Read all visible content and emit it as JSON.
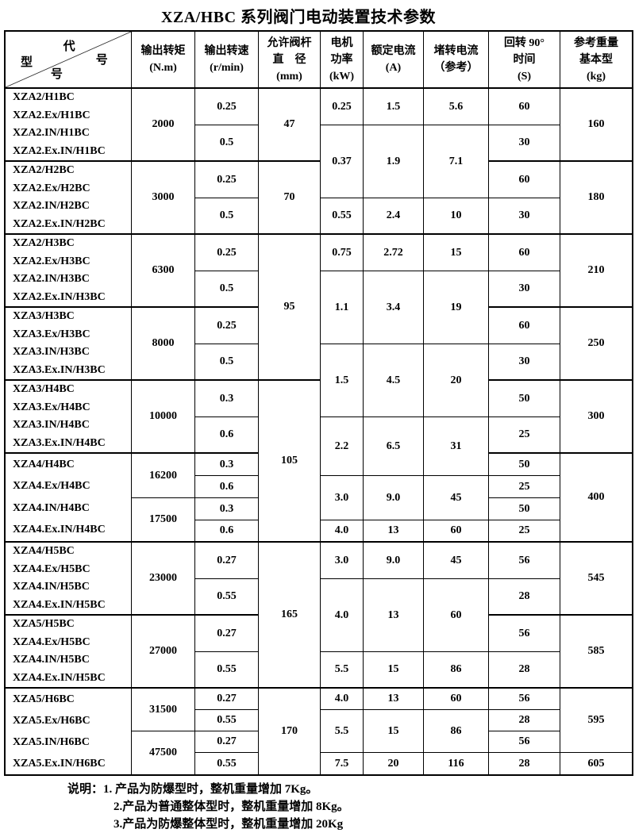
{
  "title": "XZA/HBC 系列阀门电动装置技术参数",
  "table": {
    "corner": {
      "code_chars": [
        "代",
        "号"
      ],
      "model_chars": [
        "型",
        "号"
      ]
    },
    "columns": [
      {
        "lines": [
          "输出转矩",
          "(N.m)"
        ]
      },
      {
        "lines": [
          "输出转速",
          "(r/min)"
        ]
      },
      {
        "lines": [
          "允许阀杆",
          "直　径",
          "(mm)"
        ]
      },
      {
        "lines": [
          "电机",
          "功率",
          "(kW)"
        ]
      },
      {
        "lines": [
          "额定电流",
          "(A)"
        ]
      },
      {
        "lines": [
          "堵转电流",
          "（参考）"
        ]
      },
      {
        "lines": [
          "回转 90°",
          "时间",
          "(S)"
        ]
      },
      {
        "lines": [
          "参考重量",
          "基本型",
          "(kg)"
        ]
      }
    ],
    "models": [
      {
        "row": 1,
        "lines": [
          "XZA2/H1BC",
          "XZA2.Ex/H1BC",
          "XZA2.IN/H1BC",
          "XZA2.Ex.IN/H1BC"
        ]
      },
      {
        "row": 5,
        "lines": [
          "XZA2/H2BC",
          "XZA2.Ex/H2BC",
          "XZA2.IN/H2BC",
          "XZA2.Ex.IN/H2BC"
        ]
      },
      {
        "row": 9,
        "lines": [
          "XZA2/H3BC",
          "XZA2.Ex/H3BC",
          "XZA2.IN/H3BC",
          "XZA2.Ex.IN/H3BC"
        ]
      },
      {
        "row": 13,
        "lines": [
          "XZA3/H3BC",
          "XZA3.Ex/H3BC",
          "XZA3.IN/H3BC",
          "XZA3.Ex.IN/H3BC"
        ]
      },
      {
        "row": 17,
        "lines": [
          "XZA3/H4BC",
          "XZA3.Ex/H4BC",
          "XZA3.IN/H4BC",
          "XZA3.Ex.IN/H4BC"
        ]
      },
      {
        "row": 21,
        "lines": [
          "XZA4/H4BC",
          "XZA4.Ex/H4BC",
          "XZA4.IN/H4BC",
          "XZA4.Ex.IN/H4BC"
        ]
      },
      {
        "row": 25,
        "lines": [
          "XZA4/H5BC",
          "XZA4.Ex/H5BC",
          "XZA4.IN/H5BC",
          "XZA4.Ex.IN/H5BC"
        ]
      },
      {
        "row": 29,
        "lines": [
          "XZA5/H5BC",
          "XZA4.Ex/H5BC",
          "XZA4.IN/H5BC",
          "XZA4.Ex.IN/H5BC"
        ]
      },
      {
        "row": 33,
        "lines": [
          "XZA5/H6BC",
          "XZA5.Ex/H6BC",
          "XZA5.IN/H6BC",
          "XZA5.Ex.IN/H6BC"
        ]
      }
    ],
    "torque": [
      {
        "row": 1,
        "span": 4,
        "v": "2000"
      },
      {
        "row": 5,
        "span": 4,
        "v": "3000"
      },
      {
        "row": 9,
        "span": 4,
        "v": "6300"
      },
      {
        "row": 13,
        "span": 4,
        "v": "8000"
      },
      {
        "row": 17,
        "span": 4,
        "v": "10000"
      },
      {
        "row": 21,
        "span": 2,
        "v": "16200"
      },
      {
        "row": 23,
        "span": 2,
        "v": "17500"
      },
      {
        "row": 25,
        "span": 4,
        "v": "23000"
      },
      {
        "row": 29,
        "span": 4,
        "v": "27000"
      },
      {
        "row": 33,
        "span": 2,
        "v": "31500"
      },
      {
        "row": 35,
        "span": 2,
        "v": "47500"
      }
    ],
    "speed": [
      {
        "row": 1,
        "span": 2,
        "v": "0.25"
      },
      {
        "row": 3,
        "span": 2,
        "v": "0.5"
      },
      {
        "row": 5,
        "span": 2,
        "v": "0.25"
      },
      {
        "row": 7,
        "span": 2,
        "v": "0.5"
      },
      {
        "row": 9,
        "span": 2,
        "v": "0.25"
      },
      {
        "row": 11,
        "span": 2,
        "v": "0.5"
      },
      {
        "row": 13,
        "span": 2,
        "v": "0.25"
      },
      {
        "row": 15,
        "span": 2,
        "v": "0.5"
      },
      {
        "row": 17,
        "span": 2,
        "v": "0.3"
      },
      {
        "row": 19,
        "span": 2,
        "v": "0.6"
      },
      {
        "row": 21,
        "span": 1,
        "v": "0.3"
      },
      {
        "row": 22,
        "span": 1,
        "v": "0.6"
      },
      {
        "row": 23,
        "span": 1,
        "v": "0.3"
      },
      {
        "row": 24,
        "span": 1,
        "v": "0.6"
      },
      {
        "row": 25,
        "span": 2,
        "v": "0.27"
      },
      {
        "row": 27,
        "span": 2,
        "v": "0.55"
      },
      {
        "row": 29,
        "span": 2,
        "v": "0.27"
      },
      {
        "row": 31,
        "span": 2,
        "v": "0.55"
      },
      {
        "row": 33,
        "span": 1,
        "v": "0.27"
      },
      {
        "row": 34,
        "span": 1,
        "v": "0.55"
      },
      {
        "row": 35,
        "span": 1,
        "v": "0.27"
      },
      {
        "row": 36,
        "span": 1,
        "v": "0.55"
      }
    ],
    "stem": [
      {
        "row": 1,
        "span": 4,
        "v": "47"
      },
      {
        "row": 5,
        "span": 4,
        "v": "70"
      },
      {
        "row": 9,
        "span": 8,
        "v": "95"
      },
      {
        "row": 17,
        "span": 8,
        "v": "105"
      },
      {
        "row": 25,
        "span": 8,
        "v": "165"
      },
      {
        "row": 33,
        "span": 4,
        "v": "170"
      }
    ],
    "power": [
      {
        "row": 1,
        "span": 2,
        "v": "0.25"
      },
      {
        "row": 3,
        "span": 4,
        "v": "0.37"
      },
      {
        "row": 7,
        "span": 2,
        "v": "0.55"
      },
      {
        "row": 9,
        "span": 2,
        "v": "0.75"
      },
      {
        "row": 11,
        "span": 4,
        "v": "1.1"
      },
      {
        "row": 15,
        "span": 4,
        "v": "1.5"
      },
      {
        "row": 19,
        "span": 3,
        "v": "2.2"
      },
      {
        "row": 22,
        "span": 2,
        "v": "3.0"
      },
      {
        "row": 24,
        "span": 1,
        "v": "4.0"
      },
      {
        "row": 25,
        "span": 2,
        "v": "3.0"
      },
      {
        "row": 27,
        "span": 4,
        "v": "4.0"
      },
      {
        "row": 31,
        "span": 2,
        "v": "5.5"
      },
      {
        "row": 33,
        "span": 1,
        "v": "4.0"
      },
      {
        "row": 34,
        "span": 2,
        "v": "5.5"
      },
      {
        "row": 36,
        "span": 1,
        "v": "7.5"
      }
    ],
    "current": [
      {
        "row": 1,
        "span": 2,
        "v": "1.5"
      },
      {
        "row": 3,
        "span": 4,
        "v": "1.9"
      },
      {
        "row": 7,
        "span": 2,
        "v": "2.4"
      },
      {
        "row": 9,
        "span": 2,
        "v": "2.72"
      },
      {
        "row": 11,
        "span": 4,
        "v": "3.4"
      },
      {
        "row": 15,
        "span": 4,
        "v": "4.5"
      },
      {
        "row": 19,
        "span": 3,
        "v": "6.5"
      },
      {
        "row": 22,
        "span": 2,
        "v": "9.0"
      },
      {
        "row": 24,
        "span": 1,
        "v": "13"
      },
      {
        "row": 25,
        "span": 2,
        "v": "9.0"
      },
      {
        "row": 27,
        "span": 4,
        "v": "13"
      },
      {
        "row": 31,
        "span": 2,
        "v": "15"
      },
      {
        "row": 33,
        "span": 1,
        "v": "13"
      },
      {
        "row": 34,
        "span": 2,
        "v": "15"
      },
      {
        "row": 36,
        "span": 1,
        "v": "20"
      }
    ],
    "stall": [
      {
        "row": 1,
        "span": 2,
        "v": "5.6"
      },
      {
        "row": 3,
        "span": 4,
        "v": "7.1"
      },
      {
        "row": 7,
        "span": 2,
        "v": "10"
      },
      {
        "row": 9,
        "span": 2,
        "v": "15"
      },
      {
        "row": 11,
        "span": 4,
        "v": "19"
      },
      {
        "row": 15,
        "span": 4,
        "v": "20"
      },
      {
        "row": 19,
        "span": 3,
        "v": "31"
      },
      {
        "row": 22,
        "span": 2,
        "v": "45"
      },
      {
        "row": 24,
        "span": 1,
        "v": "60"
      },
      {
        "row": 25,
        "span": 2,
        "v": "45"
      },
      {
        "row": 27,
        "span": 4,
        "v": "60"
      },
      {
        "row": 31,
        "span": 2,
        "v": "86"
      },
      {
        "row": 33,
        "span": 1,
        "v": "60"
      },
      {
        "row": 34,
        "span": 2,
        "v": "86"
      },
      {
        "row": 36,
        "span": 1,
        "v": "116"
      }
    ],
    "time": [
      {
        "row": 1,
        "span": 2,
        "v": "60"
      },
      {
        "row": 3,
        "span": 2,
        "v": "30"
      },
      {
        "row": 5,
        "span": 2,
        "v": "60"
      },
      {
        "row": 7,
        "span": 2,
        "v": "30"
      },
      {
        "row": 9,
        "span": 2,
        "v": "60"
      },
      {
        "row": 11,
        "span": 2,
        "v": "30"
      },
      {
        "row": 13,
        "span": 2,
        "v": "60"
      },
      {
        "row": 15,
        "span": 2,
        "v": "30"
      },
      {
        "row": 17,
        "span": 2,
        "v": "50"
      },
      {
        "row": 19,
        "span": 2,
        "v": "25"
      },
      {
        "row": 21,
        "span": 1,
        "v": "50"
      },
      {
        "row": 22,
        "span": 1,
        "v": "25"
      },
      {
        "row": 23,
        "span": 1,
        "v": "50"
      },
      {
        "row": 24,
        "span": 1,
        "v": "25"
      },
      {
        "row": 25,
        "span": 2,
        "v": "56"
      },
      {
        "row": 27,
        "span": 2,
        "v": "28"
      },
      {
        "row": 29,
        "span": 2,
        "v": "56"
      },
      {
        "row": 31,
        "span": 2,
        "v": "28"
      },
      {
        "row": 33,
        "span": 1,
        "v": "56"
      },
      {
        "row": 34,
        "span": 1,
        "v": "28"
      },
      {
        "row": 35,
        "span": 1,
        "v": "56"
      },
      {
        "row": 36,
        "span": 1,
        "v": "28"
      }
    ],
    "weight": [
      {
        "row": 1,
        "span": 4,
        "v": "160"
      },
      {
        "row": 5,
        "span": 4,
        "v": "180"
      },
      {
        "row": 9,
        "span": 4,
        "v": "210"
      },
      {
        "row": 13,
        "span": 4,
        "v": "250"
      },
      {
        "row": 17,
        "span": 4,
        "v": "300"
      },
      {
        "row": 21,
        "span": 4,
        "v": "400"
      },
      {
        "row": 25,
        "span": 4,
        "v": "545"
      },
      {
        "row": 29,
        "span": 4,
        "v": "585"
      },
      {
        "row": 33,
        "span": 3,
        "v": "595"
      },
      {
        "row": 36,
        "span": 1,
        "v": "605"
      }
    ]
  },
  "notes": {
    "label": "说明：",
    "items": [
      "1. 产品为防爆型时，整机重量增加 7Kg。",
      "2.产品为普通整体型时，整机重量增加 8Kg。",
      "3.产品为防爆整体型时，整机重量增加 20Kg"
    ]
  }
}
